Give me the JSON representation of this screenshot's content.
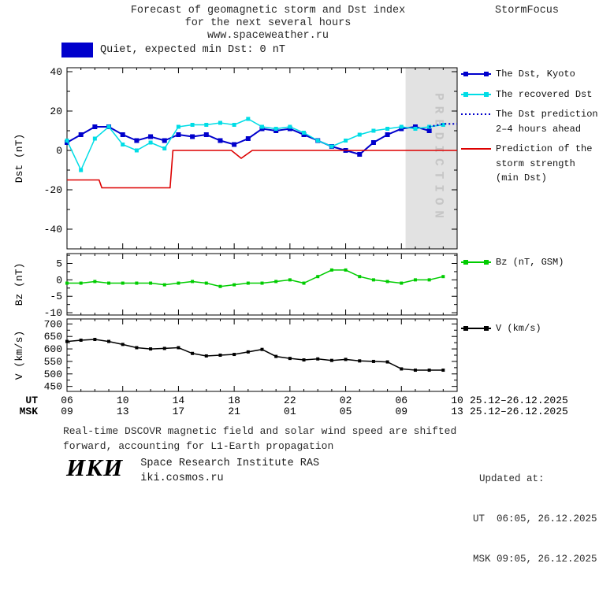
{
  "header": {
    "title_line1": "Forecast of geomagnetic storm and Dst index",
    "title_line2": "for the next several hours",
    "title_line3": "www.spaceweather.ru",
    "brand": "StormFocus"
  },
  "status_legend": {
    "text": "Quiet, expected min Dst: 0 nT"
  },
  "colors": {
    "dst_blue": "#0000cc",
    "recovered_cyan": "#00dde6",
    "prediction_red": "#dd0000",
    "bz_green": "#00cc00",
    "v_black": "#000000",
    "band": "#e2e2e2",
    "band_text": "#c6c6c6",
    "quiet_box": "#0000cc"
  },
  "legend": [
    {
      "id": "dst-kyoto",
      "label": "The Dst, Kyoto",
      "color": "#0000cc",
      "style": "solid-squares"
    },
    {
      "id": "recovered-dst",
      "label": "The recovered Dst",
      "color": "#00dde6",
      "style": "solid-squares"
    },
    {
      "id": "dst-prediction",
      "label": "The Dst prediction\n2–4 hours ahead",
      "color": "#0000cc",
      "style": "dotted"
    },
    {
      "id": "storm-strength",
      "label": "Prediction of the\nstorm strength\n(min Dst)",
      "color": "#dd0000",
      "style": "solid"
    },
    {
      "id": "bz",
      "label": "Bz (nT, GSM)",
      "color": "#00cc00",
      "style": "solid-squares"
    },
    {
      "id": "v",
      "label": "V (km/s)",
      "color": "#000000",
      "style": "solid-squares"
    }
  ],
  "chart_data": [
    {
      "type": "line",
      "ylabel": "Dst (nT)",
      "ylim": [
        -50,
        42
      ],
      "yticks": [
        -40,
        -20,
        0,
        20,
        40
      ],
      "xlim": [
        6,
        34
      ],
      "prediction_band": {
        "x0": 30.3,
        "x1": 34,
        "label": "PREDICTION"
      },
      "series": [
        {
          "name": "The Dst, Kyoto",
          "color": "#0000cc",
          "marker": "square",
          "msize": 6,
          "width": 2,
          "x": [
            6,
            7,
            8,
            9,
            10,
            11,
            12,
            13,
            14,
            15,
            16,
            17,
            18,
            19,
            20,
            21,
            22,
            23,
            24,
            25,
            26,
            27,
            28,
            29,
            30,
            31,
            32
          ],
          "y": [
            4,
            8,
            12,
            12,
            8,
            5,
            7,
            5,
            8,
            7,
            8,
            5,
            3,
            6,
            11,
            10,
            11,
            8,
            5,
            2,
            0,
            -2,
            4,
            8,
            11,
            12,
            10
          ]
        },
        {
          "name": "The recovered Dst",
          "color": "#00dde6",
          "marker": "square",
          "msize": 5,
          "width": 1.5,
          "x": [
            6,
            7,
            8,
            9,
            10,
            11,
            12,
            13,
            14,
            15,
            16,
            17,
            18,
            19,
            20,
            21,
            22,
            23,
            24,
            25,
            26,
            27,
            28,
            29,
            30,
            31,
            32,
            33
          ],
          "y": [
            5,
            -10,
            6,
            12,
            3,
            0,
            4,
            1,
            12,
            13,
            13,
            14,
            13,
            16,
            12,
            11,
            12,
            9,
            5,
            2,
            5,
            8,
            10,
            11,
            12,
            11,
            12,
            13
          ]
        },
        {
          "name": "Prediction of the storm strength (min Dst)",
          "color": "#dd0000",
          "width": 1.6,
          "x": [
            6,
            8.3,
            8.5,
            13.4,
            13.6,
            17.8,
            18.5,
            19.3,
            34
          ],
          "y": [
            -15,
            -15,
            -19,
            -19,
            0,
            0,
            -4,
            0,
            0
          ]
        },
        {
          "name": "The Dst prediction 2–4 hours ahead",
          "color": "#0000cc",
          "style": "dotted",
          "width": 2.2,
          "x": [
            32,
            33,
            34
          ],
          "y": [
            12,
            13.5,
            13.5
          ]
        }
      ]
    },
    {
      "type": "line",
      "ylabel": "Bz (nT)",
      "ylim": [
        -10.7,
        8
      ],
      "yticks": [
        -10,
        -5,
        0,
        5
      ],
      "xlim": [
        6,
        34
      ],
      "series": [
        {
          "name": "Bz (nT, GSM)",
          "color": "#00cc00",
          "marker": "square",
          "msize": 4,
          "width": 1.5,
          "x": [
            6,
            7,
            8,
            9,
            10,
            11,
            12,
            13,
            14,
            15,
            16,
            17,
            18,
            19,
            20,
            21,
            22,
            23,
            24,
            25,
            26,
            27,
            28,
            29,
            30,
            31,
            32,
            33
          ],
          "y": [
            -1,
            -1,
            -0.5,
            -1,
            -1,
            -1,
            -1,
            -1.5,
            -1,
            -0.5,
            -1,
            -2,
            -1.5,
            -1,
            -1,
            -0.5,
            0,
            -1,
            1,
            3,
            3,
            1,
            0,
            -0.5,
            -1,
            0,
            0,
            1
          ]
        }
      ]
    },
    {
      "type": "line",
      "ylabel": "V (km/s)",
      "ylim": [
        430,
        720
      ],
      "yticks": [
        450,
        500,
        550,
        600,
        650,
        700
      ],
      "xlim": [
        6,
        34
      ],
      "series": [
        {
          "name": "V (km/s)",
          "color": "#000000",
          "marker": "square",
          "msize": 4,
          "width": 1.5,
          "x": [
            6,
            7,
            8,
            9,
            10,
            11,
            12,
            13,
            14,
            15,
            16,
            17,
            18,
            19,
            20,
            21,
            22,
            23,
            24,
            25,
            26,
            27,
            28,
            29,
            30,
            31,
            32,
            33
          ],
          "y": [
            630,
            635,
            638,
            630,
            618,
            605,
            600,
            602,
            605,
            582,
            572,
            575,
            578,
            588,
            598,
            570,
            562,
            556,
            560,
            554,
            558,
            552,
            550,
            548,
            520,
            515,
            515,
            515
          ]
        }
      ]
    }
  ],
  "xaxis": {
    "rows": [
      {
        "label": "UT",
        "hours": [
          6,
          10,
          14,
          18,
          22,
          26,
          30,
          34
        ],
        "labels": [
          "06",
          "10",
          "14",
          "18",
          "22",
          "02",
          "06",
          "10"
        ],
        "date": "25.12–26.12.2025"
      },
      {
        "label": "MSK",
        "hours": [
          6,
          10,
          14,
          18,
          22,
          26,
          30,
          34
        ],
        "labels": [
          "09",
          "13",
          "17",
          "21",
          "01",
          "05",
          "09",
          "13"
        ],
        "date": "25.12–26.12.2025"
      }
    ]
  },
  "footer": {
    "note": "Real-time DSCOVR magnetic field and solar wind speed are shifted\nforward, accounting for L1-Earth propagation",
    "updated_label": "Updated at:",
    "updated_ut": "UT  06:05, 26.12.2025",
    "updated_msk": "MSK 09:05, 26.12.2025",
    "logo": "ИКИ",
    "institute": "Space Research Institute RAS",
    "site": "iki.cosmos.ru"
  }
}
